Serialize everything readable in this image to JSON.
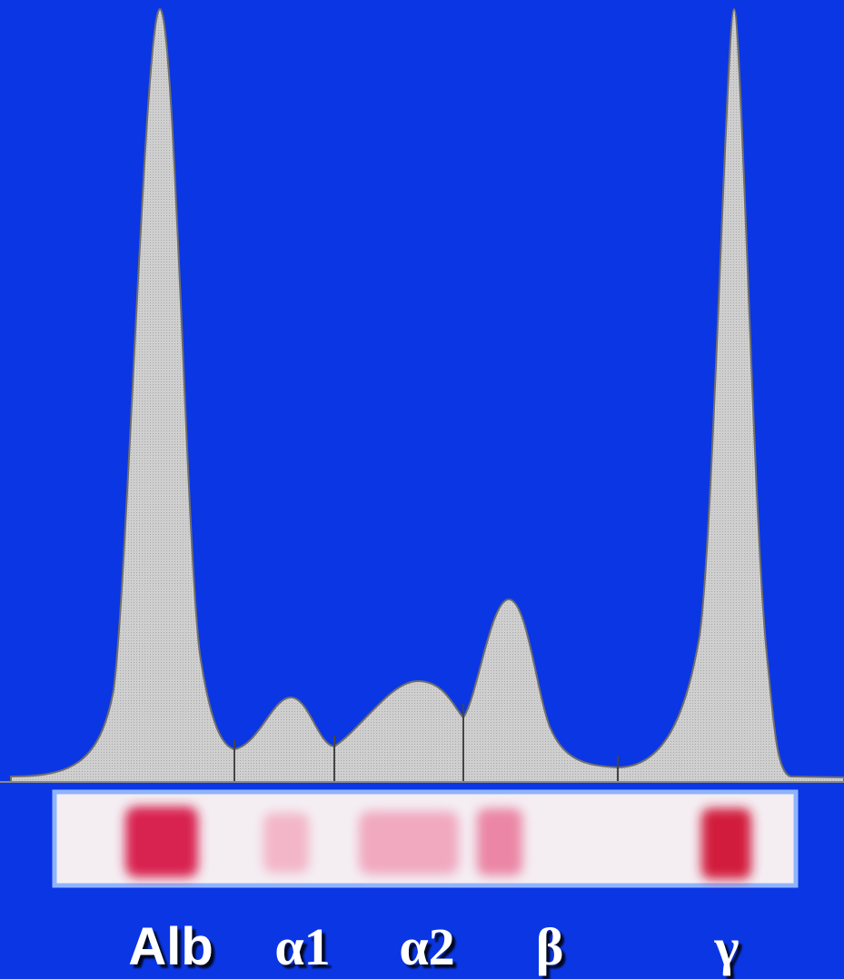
{
  "labels": [
    "Alb",
    "α1",
    "α2",
    "β",
    "γ"
  ]
}
